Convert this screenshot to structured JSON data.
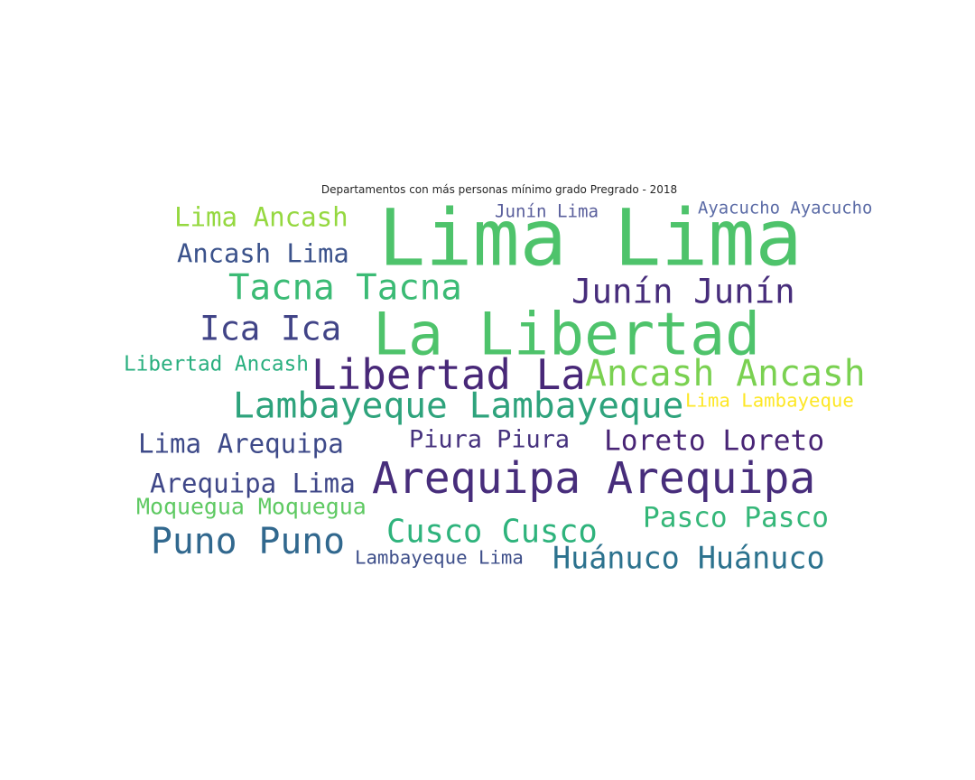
{
  "title": "Departamentos con más personas mínimo grado Pregrado - 2018",
  "words": [
    {
      "text": "Lima Lima",
      "color": "#4ec36b"
    },
    {
      "text": "La Libertad",
      "color": "#4ec36b"
    },
    {
      "text": "Arequipa Arequipa",
      "color": "#472d7b"
    },
    {
      "text": "Libertad La",
      "color": "#482878"
    },
    {
      "text": "Ancash Ancash",
      "color": "#7ad151"
    },
    {
      "text": "Lambayeque Lambayeque",
      "color": "#2ea37c"
    },
    {
      "text": "Tacna Tacna",
      "color": "#3bbb75"
    },
    {
      "text": "Junín Junín",
      "color": "#472d7b"
    },
    {
      "text": "Ica Ica",
      "color": "#414487"
    },
    {
      "text": "Puno Puno",
      "color": "#31688e"
    },
    {
      "text": "Cusco Cusco",
      "color": "#2eb37c"
    },
    {
      "text": "Huánuco Huánuco",
      "color": "#2c728e"
    },
    {
      "text": "Lima Ancash",
      "color": "#95d840"
    },
    {
      "text": "Ancash Lima",
      "color": "#3b528b"
    },
    {
      "text": "Pasco Pasco",
      "color": "#35b779"
    },
    {
      "text": "Loreto Loreto",
      "color": "#482475"
    },
    {
      "text": "Lima Arequipa",
      "color": "#3e4a89"
    },
    {
      "text": "Arequipa Lima",
      "color": "#3f4788"
    },
    {
      "text": "Piura Piura",
      "color": "#46327e"
    },
    {
      "text": "Libertad Ancash",
      "color": "#29af7f"
    },
    {
      "text": "Moquegua Moquegua",
      "color": "#5ec962"
    },
    {
      "text": "Ayacucho Ayacucho",
      "color": "#5b6ba6"
    },
    {
      "text": "Junín Lima",
      "color": "#5a5f9c"
    },
    {
      "text": "Lima Lambayeque",
      "color": "#fde725"
    },
    {
      "text": "Lambayeque Lima",
      "color": "#3e4f8a"
    }
  ]
}
